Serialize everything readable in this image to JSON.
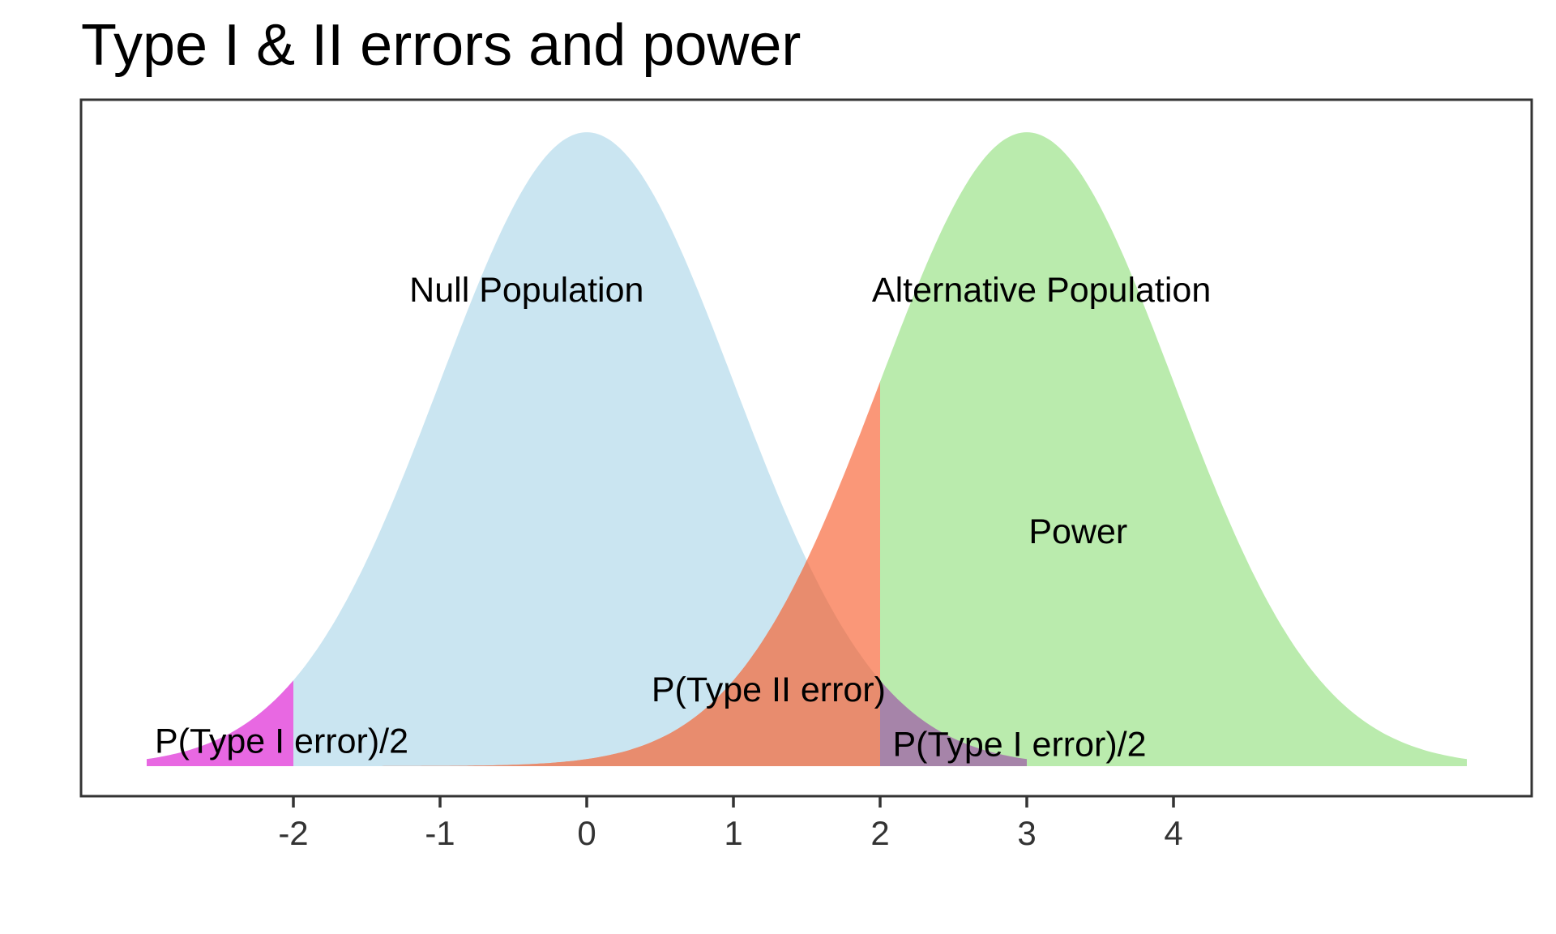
{
  "title": "Type I & II errors and power",
  "chart_data": {
    "type": "area",
    "description": "Two overlapping normal density curves illustrating two-sided Type I error, Type II error and power with critical values at -2 and 2",
    "distributions": [
      {
        "name": "null",
        "label": "Null Population",
        "mean": 0,
        "sd": 1,
        "draw_range": [
          -3,
          3
        ]
      },
      {
        "name": "alternative",
        "label": "Alternative Population",
        "mean": 3,
        "sd": 1,
        "draw_range": [
          -1.5,
          6
        ]
      }
    ],
    "critical_values": [
      -2,
      2
    ],
    "ylim": [
      0,
      0.42
    ],
    "grid": false,
    "legend": false,
    "regions": [
      {
        "name": "null-distribution-body",
        "curve": "null",
        "from": -3,
        "to": 2,
        "color": "#CAE5F1"
      },
      {
        "name": "type-2-error-area",
        "curve": "alternative",
        "from": -1.5,
        "to": 2,
        "color": "#FA9778"
      },
      {
        "name": "type-2-error-overlap",
        "curve": "min",
        "from": -1.5,
        "to": 2,
        "color": "#E88C6E"
      },
      {
        "name": "power-area",
        "curve": "alternative",
        "from": 2,
        "to": 6,
        "color": "#BAEBAD"
      },
      {
        "name": "type-1-error-right-tail",
        "curve": "null",
        "from": 2,
        "to": 3,
        "color": "#A684A9"
      },
      {
        "name": "type-1-error-left-tail",
        "curve": "null",
        "from": -3,
        "to": -2,
        "color": "#E868E2"
      }
    ],
    "annotations": [
      {
        "name": "null-population",
        "text": "Null Population",
        "x": -0.41,
        "y": 0.3
      },
      {
        "name": "alternative-population",
        "text": "Alternative Population",
        "x": 3.1,
        "y": 0.3
      },
      {
        "name": "power",
        "text": "Power",
        "x": 3.35,
        "y": 0.148
      },
      {
        "name": "type-2-error",
        "text": "P(Type II error)",
        "x": 1.24,
        "y": 0.0485
      },
      {
        "name": "type-1-error-left",
        "text": "P(Type I error)/2",
        "x": -2.08,
        "y": 0.016
      },
      {
        "name": "type-1-error-right",
        "text": "P(Type I error)/2",
        "x": 2.95,
        "y": 0.014
      }
    ],
    "x_axis": {
      "ticks": [
        -2,
        -1,
        0,
        1,
        2,
        3,
        4
      ],
      "tick_labels": [
        "-2",
        "-1",
        "0",
        "1",
        "2",
        "3",
        "4"
      ]
    }
  },
  "colors": {
    "null_fill": "#CAE5F1",
    "alternative_fill": "#BAEBAD",
    "type2_fill": "#FA9778",
    "type2_overlap_fill": "#E88C6E",
    "type1_right_fill": "#A684A9",
    "type1_left_fill": "#E868E2",
    "axis": "#333333",
    "text": "#000000"
  }
}
